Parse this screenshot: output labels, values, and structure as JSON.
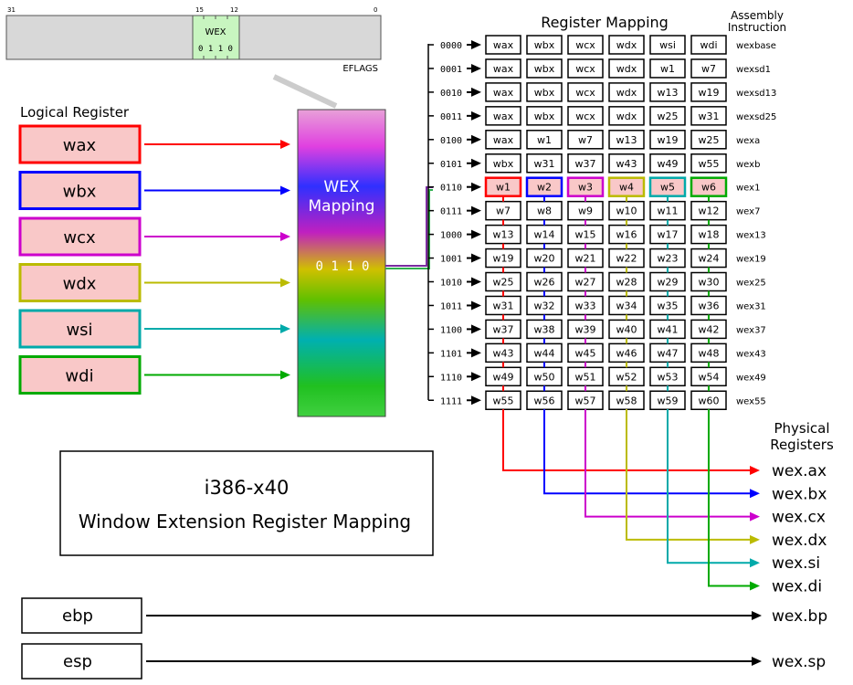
{
  "eflags": {
    "bit_left": "31",
    "bit_15": "15",
    "bit_12": "12",
    "bit_right": "0",
    "field_name": "WEX",
    "field_value": "0 1 1 0",
    "register_name": "EFLAGS"
  },
  "logical_header": "Logical Register",
  "logical_registers": [
    {
      "name": "wax",
      "color": "#ff0000"
    },
    {
      "name": "wbx",
      "color": "#0000ff"
    },
    {
      "name": "wcx",
      "color": "#cc00cc"
    },
    {
      "name": "wdx",
      "color": "#bbbb00"
    },
    {
      "name": "wsi",
      "color": "#00aaaa"
    },
    {
      "name": "wdi",
      "color": "#00aa00"
    }
  ],
  "mapping_box": {
    "title_line1": "WEX",
    "title_line2": "Mapping",
    "value": "0 1 1 0"
  },
  "table": {
    "header": "Register Mapping",
    "asm_header_line1": "Assembly",
    "asm_header_line2": "Instruction",
    "highlight_row": 6,
    "rows": [
      {
        "code": "0000",
        "regs": [
          "wax",
          "wbx",
          "wcx",
          "wdx",
          "wsi",
          "wdi"
        ],
        "asm": "wexbase"
      },
      {
        "code": "0001",
        "regs": [
          "wax",
          "wbx",
          "wcx",
          "wdx",
          "w1",
          "w7"
        ],
        "asm": "wexsd1"
      },
      {
        "code": "0010",
        "regs": [
          "wax",
          "wbx",
          "wcx",
          "wdx",
          "w13",
          "w19"
        ],
        "asm": "wexsd13"
      },
      {
        "code": "0011",
        "regs": [
          "wax",
          "wbx",
          "wcx",
          "wdx",
          "w25",
          "w31"
        ],
        "asm": "wexsd25"
      },
      {
        "code": "0100",
        "regs": [
          "wax",
          "w1",
          "w7",
          "w13",
          "w19",
          "w25"
        ],
        "asm": "wexa"
      },
      {
        "code": "0101",
        "regs": [
          "wbx",
          "w31",
          "w37",
          "w43",
          "w49",
          "w55"
        ],
        "asm": "wexb"
      },
      {
        "code": "0110",
        "regs": [
          "w1",
          "w2",
          "w3",
          "w4",
          "w5",
          "w6"
        ],
        "asm": "wex1"
      },
      {
        "code": "0111",
        "regs": [
          "w7",
          "w8",
          "w9",
          "w10",
          "w11",
          "w12"
        ],
        "asm": "wex7"
      },
      {
        "code": "1000",
        "regs": [
          "w13",
          "w14",
          "w15",
          "w16",
          "w17",
          "w18"
        ],
        "asm": "wex13"
      },
      {
        "code": "1001",
        "regs": [
          "w19",
          "w20",
          "w21",
          "w22",
          "w23",
          "w24"
        ],
        "asm": "wex19"
      },
      {
        "code": "1010",
        "regs": [
          "w25",
          "w26",
          "w27",
          "w28",
          "w29",
          "w30"
        ],
        "asm": "wex25"
      },
      {
        "code": "1011",
        "regs": [
          "w31",
          "w32",
          "w33",
          "w34",
          "w35",
          "w36"
        ],
        "asm": "wex31"
      },
      {
        "code": "1100",
        "regs": [
          "w37",
          "w38",
          "w39",
          "w40",
          "w41",
          "w42"
        ],
        "asm": "wex37"
      },
      {
        "code": "1101",
        "regs": [
          "w43",
          "w44",
          "w45",
          "w46",
          "w47",
          "w48"
        ],
        "asm": "wex43"
      },
      {
        "code": "1110",
        "regs": [
          "w49",
          "w50",
          "w51",
          "w52",
          "w53",
          "w54"
        ],
        "asm": "wex49"
      },
      {
        "code": "1111",
        "regs": [
          "w55",
          "w56",
          "w57",
          "w58",
          "w59",
          "w60"
        ],
        "asm": "wex55"
      }
    ]
  },
  "physical_header_line1": "Physical",
  "physical_header_line2": "Registers",
  "physical_registers": [
    "wex.ax",
    "wex.bx",
    "wex.cx",
    "wex.dx",
    "wex.si",
    "wex.di"
  ],
  "title_box": {
    "line1": "i386-x40",
    "line2": "Window Extension Register Mapping"
  },
  "extra_registers": [
    {
      "name": "ebp",
      "target": "wex.bp"
    },
    {
      "name": "esp",
      "target": "wex.sp"
    }
  ]
}
